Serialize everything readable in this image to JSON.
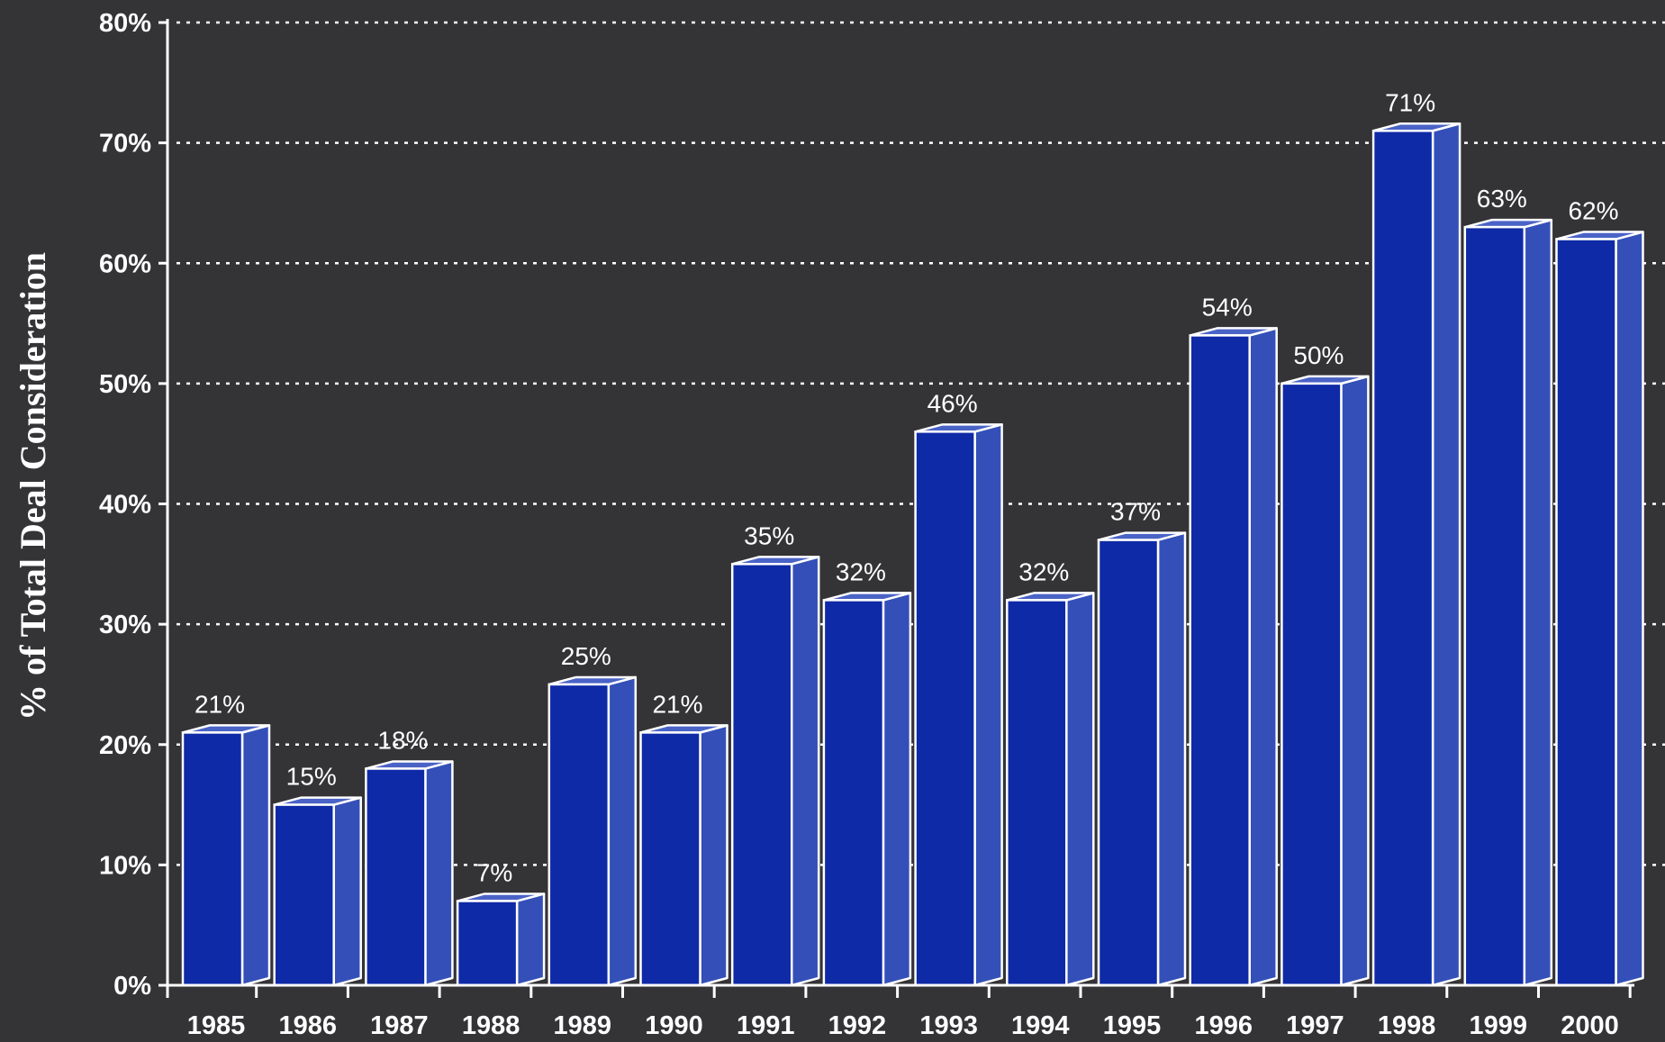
{
  "chart_data": {
    "type": "bar",
    "title": "",
    "xlabel": "",
    "ylabel": "% of Total Deal Consideration",
    "categories": [
      "1985",
      "1986",
      "1987",
      "1988",
      "1989",
      "1990",
      "1991",
      "1992",
      "1993",
      "1994",
      "1995",
      "1996",
      "1997",
      "1998",
      "1999",
      "2000"
    ],
    "values": [
      21,
      15,
      18,
      7,
      25,
      21,
      35,
      32,
      46,
      32,
      37,
      54,
      50,
      71,
      63,
      62
    ],
    "data_labels": [
      "21%",
      "15%",
      "18%",
      "7%",
      "25%",
      "21%",
      "35%",
      "32%",
      "46%",
      "32%",
      "37%",
      "54%",
      "50%",
      "71%",
      "63%",
      "62%"
    ],
    "ylim": [
      0,
      80
    ],
    "yticks": [
      0,
      10,
      20,
      30,
      40,
      50,
      60,
      70,
      80
    ],
    "ytick_labels": [
      "0%",
      "10%",
      "20%",
      "30%",
      "40%",
      "50%",
      "60%",
      "70%",
      "80%"
    ],
    "grid": "horizontal-dotted",
    "legend": "none",
    "colors": {
      "background": "#343437",
      "bar_front": "#0f2aa6",
      "bar_side": "#3450b8",
      "bar_top": "#4a63c6",
      "bar_outline": "#ffffff",
      "grid": "#ffffff",
      "text": "#ffffff"
    }
  }
}
